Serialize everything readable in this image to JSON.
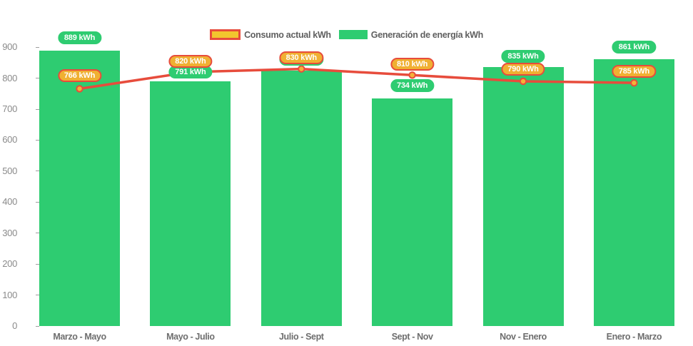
{
  "legend": {
    "items": [
      {
        "label": "Consumo actual kWh",
        "swatch": "yellow-with-red-border"
      },
      {
        "label": "Generación de energía kWh",
        "swatch": "green"
      }
    ]
  },
  "colors": {
    "bar_green": "#2ecc71",
    "line_red": "#e74c3c",
    "pill_amber_fill": "#f0b032",
    "pill_amber_border": "#e74c3c",
    "legend_yellow": "#f2c62e",
    "dot_fill": "#f4b238",
    "axis_text": "#8b8b8b",
    "category_text": "#6e6e6e"
  },
  "unit": "kWh",
  "chart_data": {
    "type": "bar",
    "title": "",
    "xlabel": "",
    "ylabel": "",
    "categories": [
      "Marzo - Mayo",
      "Mayo - Julio",
      "Julio - Sept",
      "Sept - Nov",
      "Nov - Enero",
      "Enero - Marzo"
    ],
    "series": [
      {
        "name": "Generación de energía kWh",
        "kind": "bar",
        "color": "#2ecc71",
        "values": [
          889,
          791,
          825,
          734,
          835,
          861
        ],
        "labels": [
          "889 kWh",
          "791 kWh",
          "825 kWh",
          "734 kWh",
          "835 kWh",
          "861 kWh"
        ]
      },
      {
        "name": "Consumo actual kWh",
        "kind": "line",
        "color": "#e74c3c",
        "values": [
          766,
          820,
          830,
          810,
          790,
          785
        ],
        "labels": [
          "766 kWh",
          "820 kWh",
          "830 kWh",
          "810 kWh",
          "790 kWh",
          "785 kWh"
        ]
      }
    ],
    "ylim": [
      0,
      900
    ],
    "yticks": [
      0,
      100,
      200,
      300,
      400,
      500,
      600,
      700,
      800,
      900
    ],
    "grid": false,
    "legend_position": "top"
  }
}
